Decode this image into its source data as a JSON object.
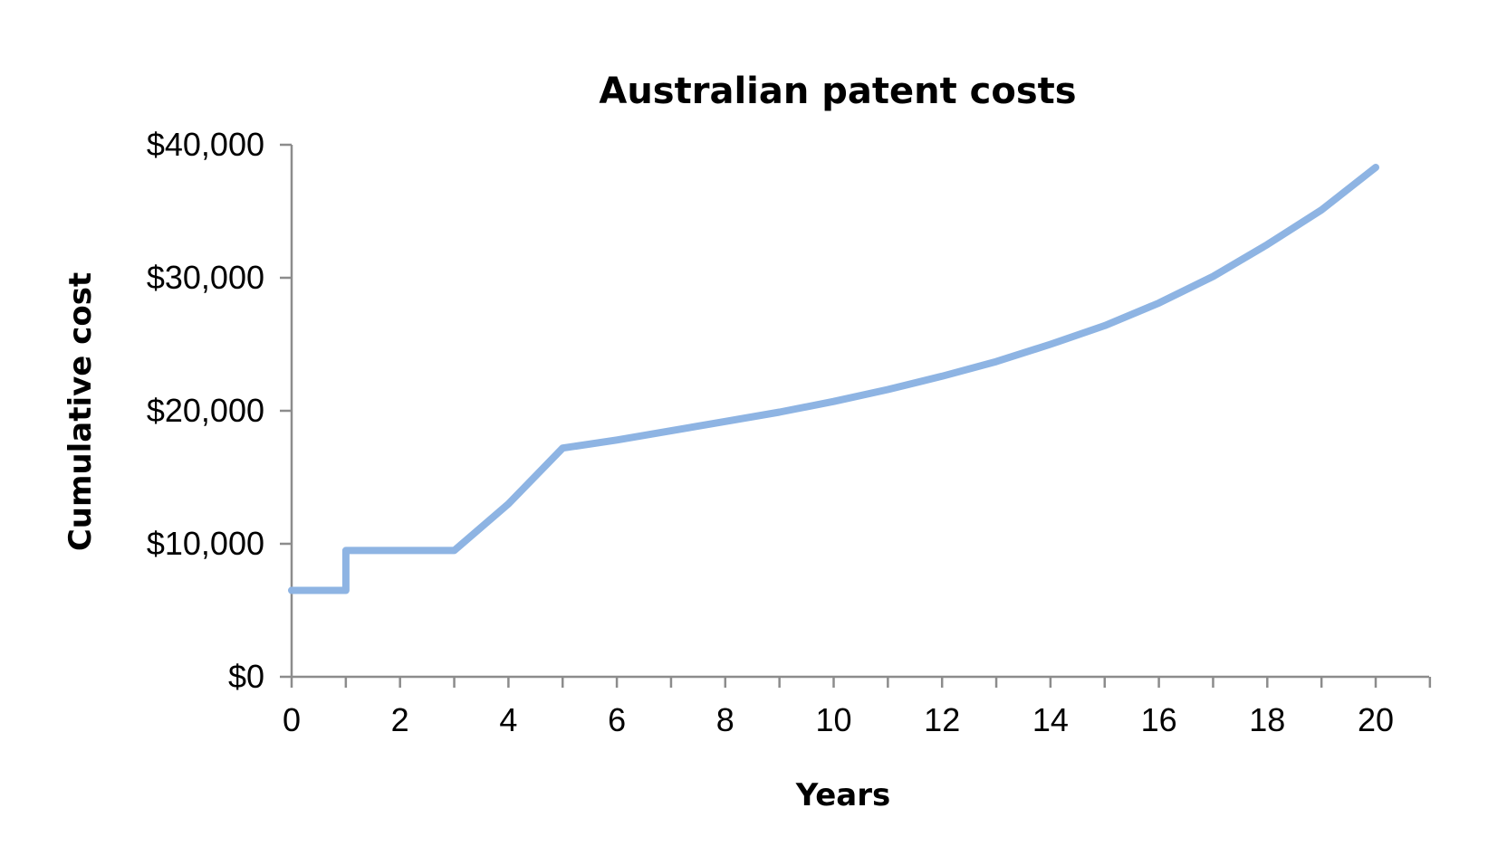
{
  "chart_data": {
    "type": "line",
    "title": "Australian patent costs",
    "xlabel": "Years",
    "ylabel": "Cumulative cost",
    "xlim": [
      0,
      21
    ],
    "ylim": [
      0,
      40000
    ],
    "x_ticks": [
      0,
      2,
      4,
      6,
      8,
      10,
      12,
      14,
      16,
      18,
      20
    ],
    "x_tick_labels": [
      "0",
      "2",
      "4",
      "6",
      "8",
      "10",
      "12",
      "14",
      "16",
      "18",
      "20"
    ],
    "y_ticks": [
      0,
      10000,
      20000,
      30000,
      40000
    ],
    "y_tick_labels": [
      "$0",
      "$10,000",
      "$20,000",
      "$30,000",
      "$40,000"
    ],
    "grid": false,
    "legend": "none",
    "series": [
      {
        "color": "#8eb4e3",
        "points": [
          [
            0,
            6500
          ],
          [
            1,
            6500
          ],
          [
            1,
            9500
          ],
          [
            2,
            9500
          ],
          [
            3,
            9500
          ],
          [
            4,
            13000
          ],
          [
            5,
            17200
          ],
          [
            6,
            17800
          ],
          [
            7,
            18500
          ],
          [
            8,
            19200
          ],
          [
            9,
            19900
          ],
          [
            10,
            20700
          ],
          [
            11,
            21600
          ],
          [
            12,
            22600
          ],
          [
            13,
            23700
          ],
          [
            14,
            25000
          ],
          [
            15,
            26400
          ],
          [
            16,
            28100
          ],
          [
            17,
            30100
          ],
          [
            18,
            32500
          ],
          [
            19,
            35100
          ],
          [
            20,
            38300
          ]
        ]
      }
    ]
  }
}
